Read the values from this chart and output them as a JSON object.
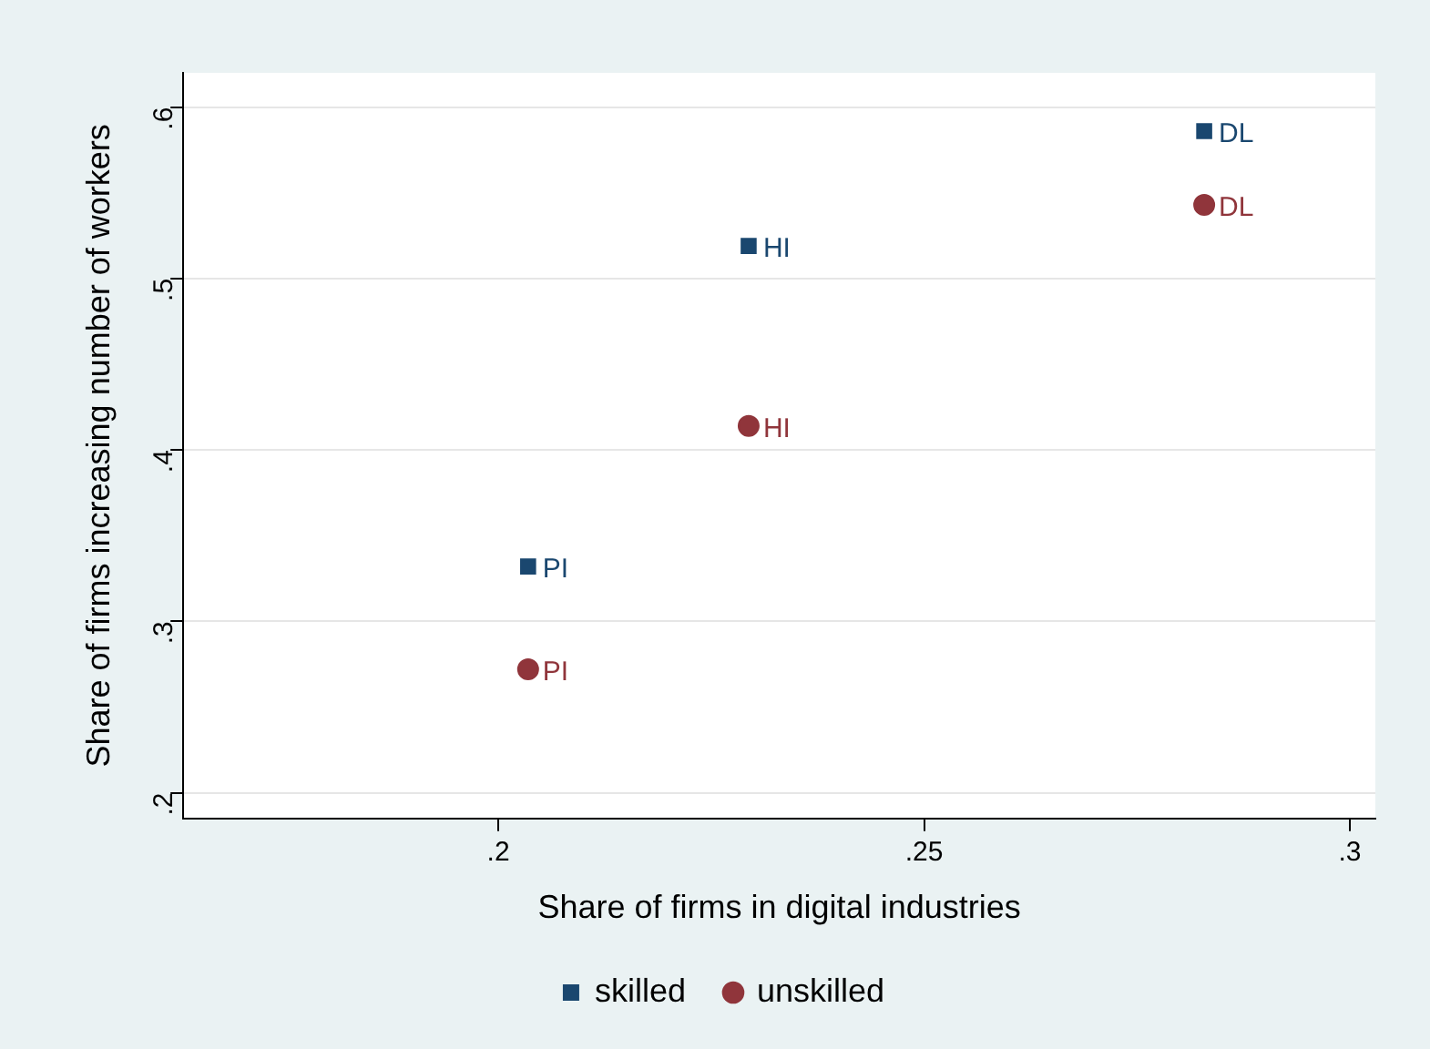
{
  "chart_data": {
    "type": "scatter",
    "xlabel": "Share of firms in digital industries",
    "ylabel": "Share of firms increasing number of workers",
    "series": [
      {
        "name": "skilled",
        "color": "#1a476f",
        "marker": "square",
        "x": [
          0.2035,
          0.2294,
          0.2829
        ],
        "values": [
          0.332,
          0.519,
          0.586
        ]
      },
      {
        "name": "unskilled",
        "color": "#90353b",
        "marker": "circle",
        "x": [
          0.2035,
          0.2294,
          0.2829
        ],
        "values": [
          0.272,
          0.414,
          0.543
        ]
      }
    ],
    "annotations": [
      {
        "text": "PI",
        "x": 0.2035,
        "y": 0.332
      },
      {
        "text": "HI",
        "x": 0.2294,
        "y": 0.519
      },
      {
        "text": "DL",
        "x": 0.2829,
        "y": 0.586
      },
      {
        "text": "PI",
        "x": 0.2035,
        "y": 0.272
      },
      {
        "text": "HI",
        "x": 0.2294,
        "y": 0.414
      },
      {
        "text": "DL",
        "x": 0.2829,
        "y": 0.543
      }
    ],
    "xlim": [
      0.163,
      0.303
    ],
    "xticks": [
      {
        "value": 0.2,
        "label": ".2"
      },
      {
        "value": 0.25,
        "label": ".25"
      },
      {
        "value": 0.3,
        "label": ".3"
      }
    ],
    "ylim": [
      0.185,
      0.62
    ],
    "yticks": [
      {
        "value": 0.2,
        "label": ".2"
      },
      {
        "value": 0.3,
        "label": ".3"
      },
      {
        "value": 0.4,
        "label": ".4"
      },
      {
        "value": 0.5,
        "label": ".5"
      },
      {
        "value": 0.6,
        "label": ".6"
      }
    ],
    "grid": "y",
    "legend": "bottom"
  }
}
